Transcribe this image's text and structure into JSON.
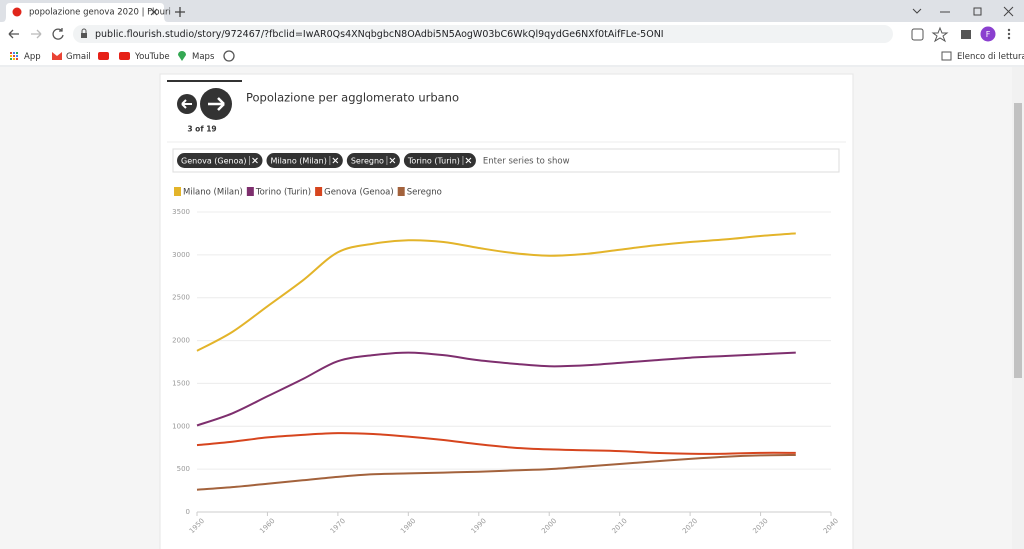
{
  "browser": {
    "tab_title": "popolazione genova 2020 | Flouri",
    "url": "public.flourish.studio/story/972467/?fbclid=IwAR0Qs4XNqbgbcN8OAdbi5N5AogW03bC6WkQl9qydGe6NXf0tAifFLe-5ONI",
    "profile": "F",
    "bookmarks": [
      "App",
      "Gmail",
      "YouTube",
      "Maps"
    ],
    "reading_list": "Elenco di lettura"
  },
  "story": {
    "page": "3 of 19",
    "title": "Popolazione per agglomerato urbano",
    "filter_chips": [
      "Genova (Genoa)",
      "Milano (Milan)",
      "Seregno",
      "Torino (Turin)"
    ],
    "filter_placeholder": "Enter series to show"
  },
  "chart_data": {
    "type": "line",
    "x": [
      1950,
      1955,
      1960,
      1965,
      1970,
      1975,
      1980,
      1985,
      1990,
      1995,
      2000,
      2005,
      2010,
      2015,
      2020,
      2025,
      2030,
      2035
    ],
    "series": [
      {
        "name": "Milano (Milan)",
        "color": "#e3b42a",
        "values": [
          1880,
          2100,
          2400,
          2700,
          3030,
          3130,
          3170,
          3150,
          3080,
          3020,
          2990,
          3010,
          3060,
          3110,
          3150,
          3180,
          3220,
          3250
        ]
      },
      {
        "name": "Torino (Turin)",
        "color": "#7e2f6e",
        "values": [
          1010,
          1150,
          1350,
          1550,
          1760,
          1830,
          1860,
          1830,
          1770,
          1730,
          1700,
          1710,
          1740,
          1770,
          1800,
          1820,
          1840,
          1860
        ]
      },
      {
        "name": "Genova (Genoa)",
        "color": "#d6451e",
        "values": [
          780,
          820,
          870,
          900,
          920,
          910,
          880,
          840,
          790,
          750,
          730,
          720,
          710,
          690,
          680,
          680,
          690,
          690
        ]
      },
      {
        "name": "Seregno",
        "color": "#a3623c",
        "values": [
          260,
          290,
          330,
          370,
          410,
          440,
          450,
          460,
          470,
          485,
          500,
          530,
          560,
          590,
          620,
          645,
          660,
          665
        ]
      }
    ],
    "xlim": [
      1950,
      2040
    ],
    "xticks": [
      1950,
      1960,
      1970,
      1980,
      1990,
      2000,
      2010,
      2020,
      2030,
      2040
    ],
    "ylim": [
      0,
      3500
    ],
    "yticks": [
      0,
      500,
      1000,
      1500,
      2000,
      2500,
      3000,
      3500
    ],
    "grid": true
  }
}
